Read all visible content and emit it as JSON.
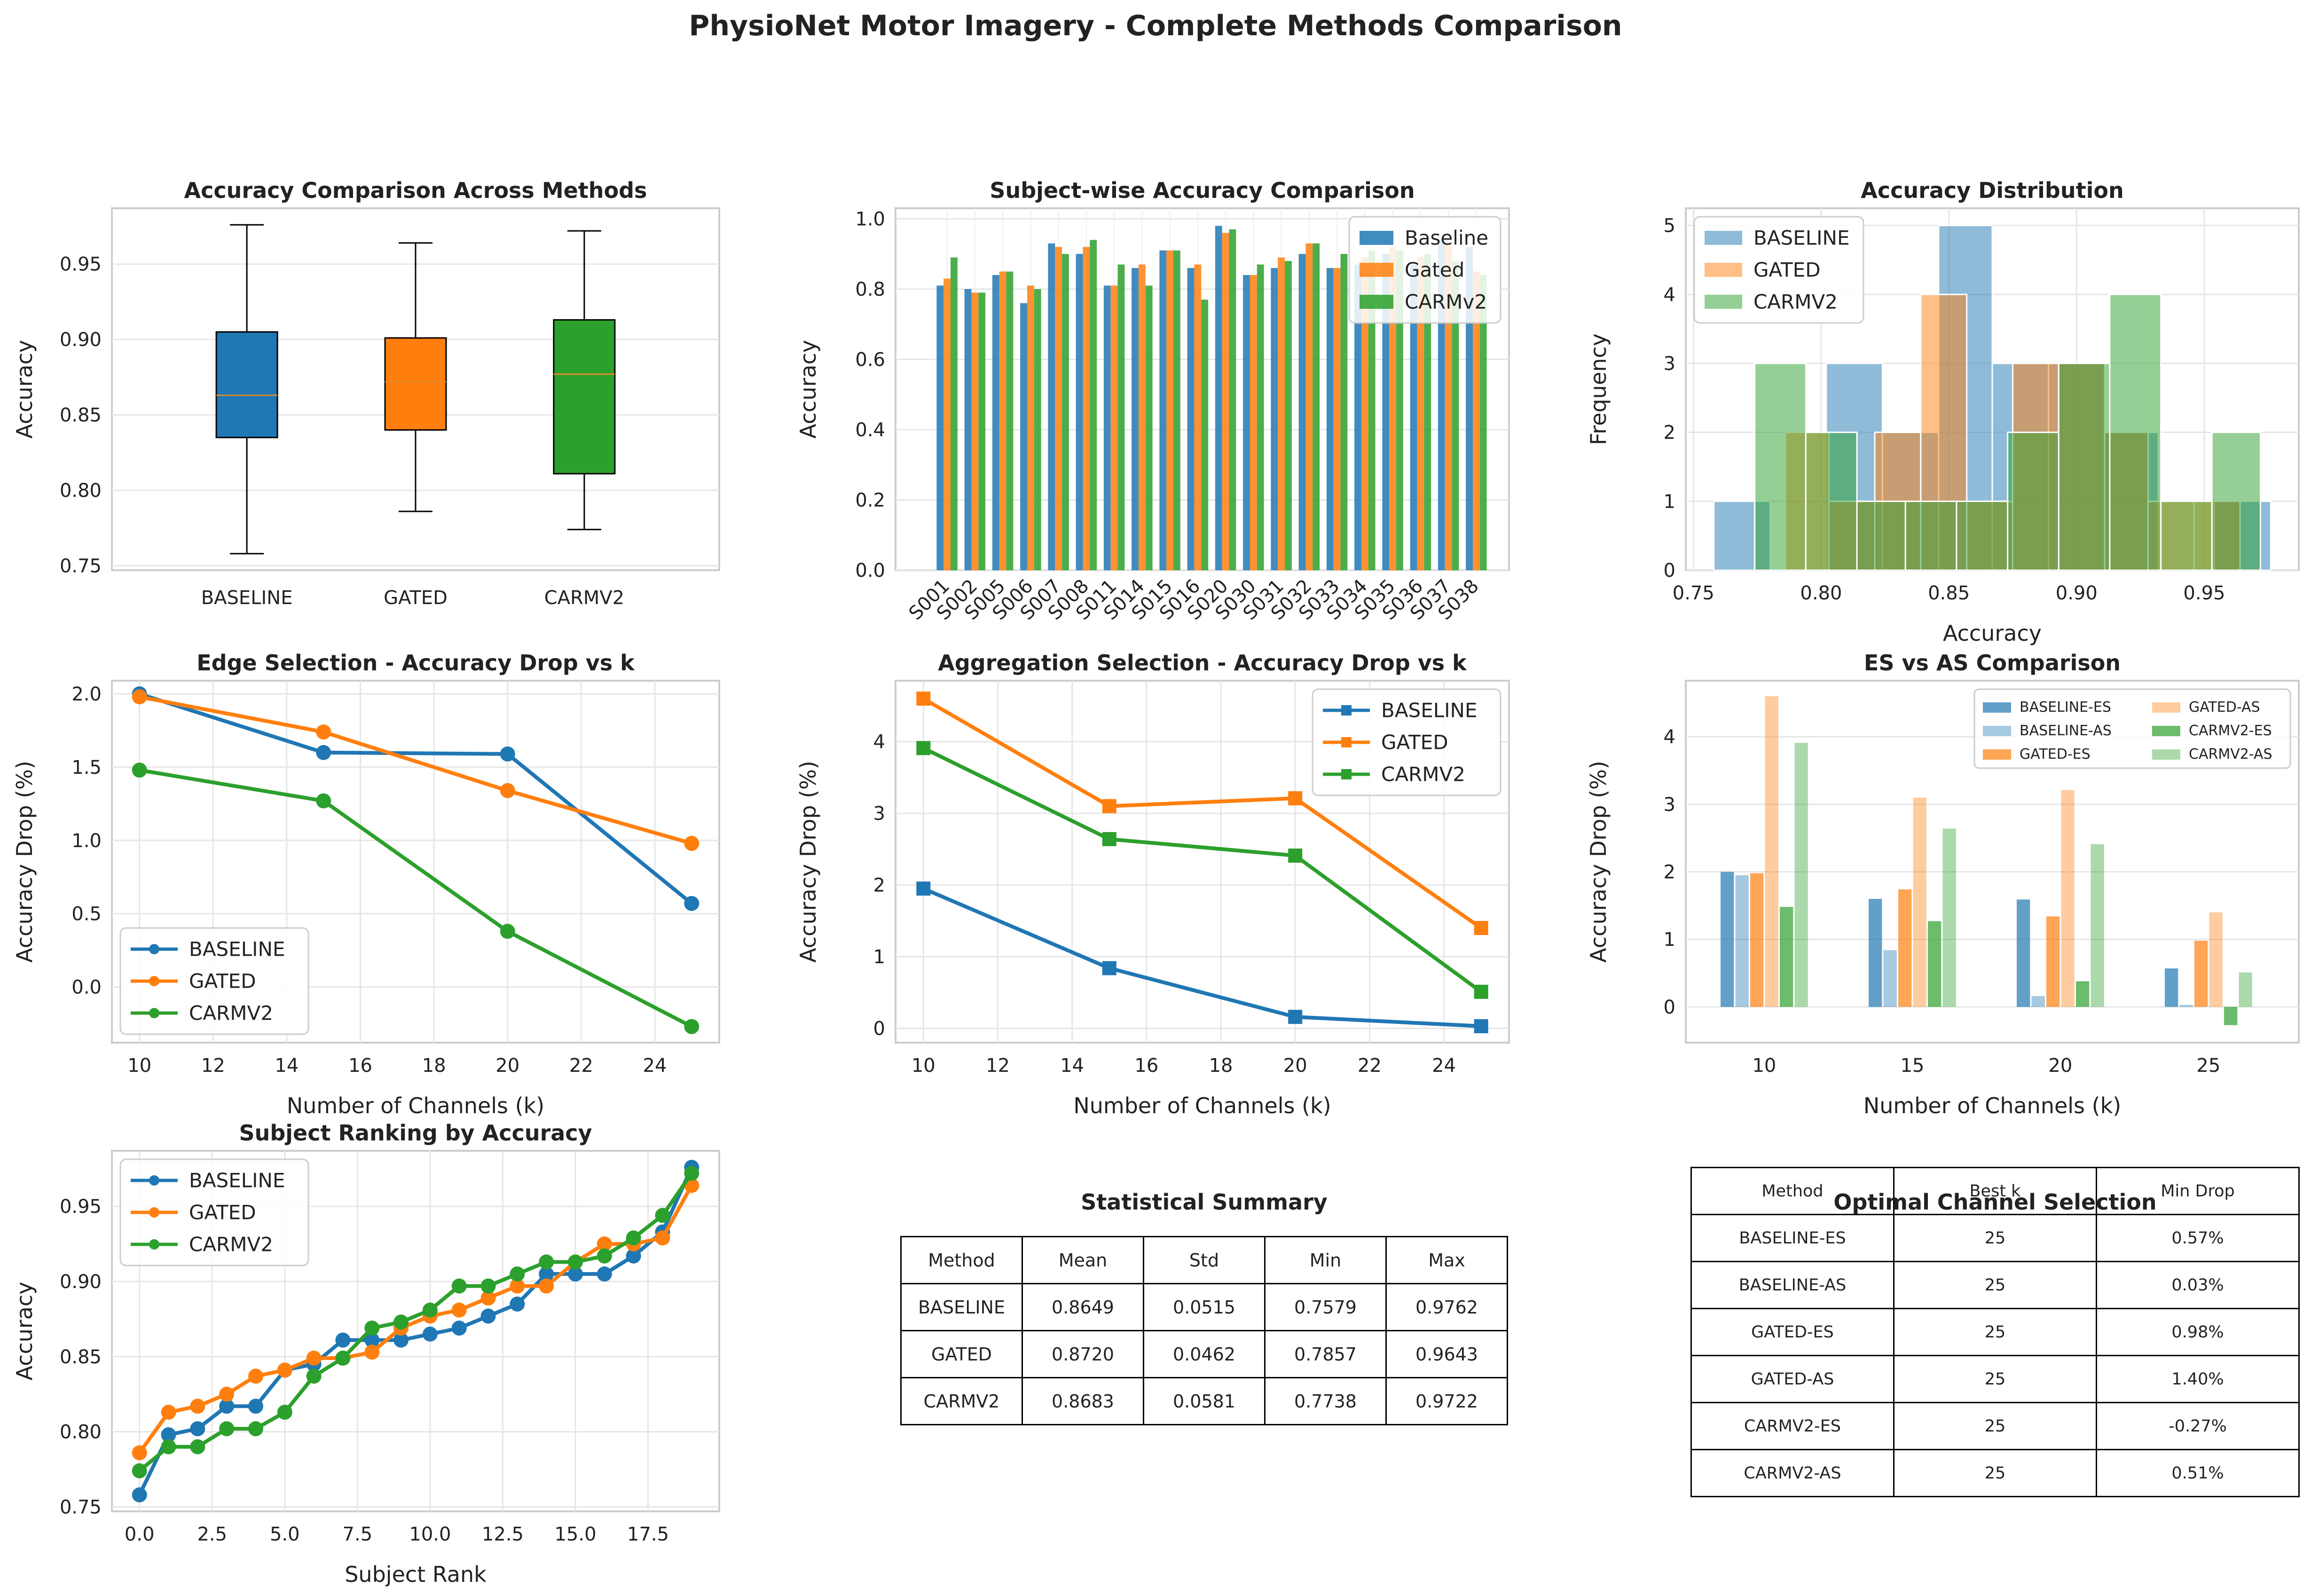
{
  "title": "PhysioNet Motor Imagery - Complete Methods Comparison",
  "colors": {
    "baseline": "#1f77b4",
    "gated": "#ff7f0e",
    "carmv2": "#2ca02c"
  },
  "chart_data": [
    {
      "id": "acc-box",
      "type": "box",
      "title": "Accuracy Comparison Across Methods",
      "xlabel": "",
      "ylabel": "Accuracy",
      "categories": [
        "BASELINE",
        "GATED",
        "CARMV2"
      ],
      "boxes": [
        {
          "whisker_low": 0.758,
          "q1": 0.835,
          "median": 0.863,
          "q3": 0.905,
          "whisker_high": 0.976
        },
        {
          "whisker_low": 0.786,
          "q1": 0.84,
          "median": 0.872,
          "q3": 0.901,
          "whisker_high": 0.964
        },
        {
          "whisker_low": 0.774,
          "q1": 0.811,
          "median": 0.877,
          "q3": 0.913,
          "whisker_high": 0.972
        }
      ],
      "ylim": [
        0.747,
        0.987
      ],
      "yticks": [
        "0.75",
        "0.80",
        "0.85",
        "0.90",
        "0.95"
      ],
      "grid": true
    },
    {
      "id": "subject-bars",
      "type": "bar",
      "title": "Subject-wise Accuracy Comparison",
      "xlabel": "",
      "ylabel": "Accuracy",
      "categories": [
        "S001",
        "S002",
        "S005",
        "S006",
        "S007",
        "S008",
        "S011",
        "S014",
        "S015",
        "S016",
        "S020",
        "S030",
        "S031",
        "S032",
        "S033",
        "S034",
        "S035",
        "S036",
        "S037",
        "S038"
      ],
      "series": [
        {
          "name": "Baseline",
          "values": [
            0.81,
            0.8,
            0.84,
            0.76,
            0.93,
            0.9,
            0.81,
            0.86,
            0.91,
            0.86,
            0.98,
            0.84,
            0.86,
            0.9,
            0.86,
            0.87,
            0.9,
            0.87,
            0.94,
            0.92
          ]
        },
        {
          "name": "Gated",
          "values": [
            0.83,
            0.79,
            0.85,
            0.81,
            0.92,
            0.92,
            0.81,
            0.87,
            0.91,
            0.87,
            0.96,
            0.84,
            0.89,
            0.93,
            0.86,
            0.89,
            0.92,
            0.89,
            0.93,
            0.85
          ]
        },
        {
          "name": "CARMv2",
          "values": [
            0.89,
            0.79,
            0.85,
            0.8,
            0.9,
            0.94,
            0.87,
            0.81,
            0.91,
            0.77,
            0.97,
            0.87,
            0.88,
            0.93,
            0.9,
            0.91,
            0.91,
            0.9,
            0.88,
            0.84
          ]
        }
      ],
      "ylim": [
        0,
        1.03
      ],
      "yticks": [
        "0.0",
        "0.2",
        "0.4",
        "0.6",
        "0.8",
        "1.0"
      ],
      "legend": "top-right",
      "grid": true
    },
    {
      "id": "acc-hist",
      "type": "histogram",
      "title": "Accuracy Distribution",
      "xlabel": "Accuracy",
      "ylabel": "Frequency",
      "series": [
        {
          "name": "BASELINE",
          "bins": [
            [
              0.758,
              0.78,
              1
            ],
            [
              0.78,
              0.802,
              0
            ],
            [
              0.802,
              0.824,
              3
            ],
            [
              0.824,
              0.846,
              2
            ],
            [
              0.846,
              0.867,
              5
            ],
            [
              0.867,
              0.889,
              3
            ],
            [
              0.889,
              0.911,
              3
            ],
            [
              0.911,
              0.932,
              2
            ],
            [
              0.932,
              0.954,
              0
            ],
            [
              0.954,
              0.976,
              1
            ]
          ]
        },
        {
          "name": "GATED",
          "bins": [
            [
              0.786,
              0.803,
              2
            ],
            [
              0.803,
              0.821,
              1
            ],
            [
              0.821,
              0.839,
              2
            ],
            [
              0.839,
              0.857,
              4
            ],
            [
              0.857,
              0.875,
              1
            ],
            [
              0.875,
              0.893,
              3
            ],
            [
              0.893,
              0.911,
              3
            ],
            [
              0.911,
              0.928,
              2
            ],
            [
              0.928,
              0.946,
              1
            ],
            [
              0.946,
              0.964,
              1
            ]
          ]
        },
        {
          "name": "CARMV2",
          "bins": [
            [
              0.774,
              0.794,
              3
            ],
            [
              0.794,
              0.814,
              2
            ],
            [
              0.814,
              0.833,
              1
            ],
            [
              0.833,
              0.853,
              1
            ],
            [
              0.853,
              0.873,
              1
            ],
            [
              0.873,
              0.893,
              2
            ],
            [
              0.893,
              0.913,
              3
            ],
            [
              0.913,
              0.933,
              4
            ],
            [
              0.933,
              0.953,
              1
            ],
            [
              0.953,
              0.972,
              2
            ]
          ]
        }
      ],
      "xlim": [
        0.747,
        0.987
      ],
      "ylim": [
        0,
        5.25
      ],
      "xticks": [
        "0.75",
        "0.80",
        "0.85",
        "0.90",
        "0.95"
      ],
      "yticks": [
        "0",
        "1",
        "2",
        "3",
        "4",
        "5"
      ],
      "legend": "top-left",
      "grid": true
    },
    {
      "id": "es-drop",
      "type": "line",
      "title": "Edge Selection - Accuracy Drop vs k",
      "xlabel": "Number of Channels (k)",
      "ylabel": "Accuracy Drop (%)",
      "x": [
        10,
        15,
        20,
        25
      ],
      "series": [
        {
          "name": "BASELINE",
          "values": [
            2.0,
            1.6,
            1.59,
            0.57
          ]
        },
        {
          "name": "GATED",
          "values": [
            1.98,
            1.74,
            1.34,
            0.98
          ]
        },
        {
          "name": "CARMV2",
          "values": [
            1.48,
            1.27,
            0.38,
            -0.27
          ]
        }
      ],
      "marker": "circle",
      "xlim": [
        9.25,
        25.75
      ],
      "ylim": [
        -0.38,
        2.09
      ],
      "xticks": [
        "10",
        "12",
        "14",
        "16",
        "18",
        "20",
        "22",
        "24"
      ],
      "yticks": [
        "0.0",
        "0.5",
        "1.0",
        "1.5",
        "2.0"
      ],
      "legend": "bottom-left",
      "grid": true
    },
    {
      "id": "as-drop",
      "type": "line",
      "title": "Aggregation Selection - Accuracy Drop vs k",
      "xlabel": "Number of Channels (k)",
      "ylabel": "Accuracy Drop (%)",
      "x": [
        10,
        15,
        20,
        25
      ],
      "series": [
        {
          "name": "BASELINE",
          "values": [
            1.95,
            0.84,
            0.16,
            0.03
          ]
        },
        {
          "name": "GATED",
          "values": [
            4.6,
            3.1,
            3.21,
            1.4
          ]
        },
        {
          "name": "CARMV2",
          "values": [
            3.91,
            2.64,
            2.41,
            0.51
          ]
        }
      ],
      "marker": "square",
      "xlim": [
        9.25,
        25.75
      ],
      "ylim": [
        -0.2,
        4.85
      ],
      "xticks": [
        "10",
        "12",
        "14",
        "16",
        "18",
        "20",
        "22",
        "24"
      ],
      "yticks": [
        "0",
        "1",
        "2",
        "3",
        "4"
      ],
      "legend": "top-right",
      "grid": true
    },
    {
      "id": "es-as-bars",
      "type": "bar",
      "title": "ES vs AS Comparison",
      "xlabel": "Number of Channels (k)",
      "ylabel": "Accuracy Drop (%)",
      "x": [
        10,
        15,
        20,
        25
      ],
      "series": [
        {
          "name": "BASELINE-ES",
          "values": [
            2.0,
            1.6,
            1.59,
            0.57
          ]
        },
        {
          "name": "BASELINE-AS",
          "values": [
            1.95,
            0.84,
            0.16,
            0.03
          ]
        },
        {
          "name": "GATED-ES",
          "values": [
            1.98,
            1.74,
            1.34,
            0.98
          ]
        },
        {
          "name": "GATED-AS",
          "values": [
            4.6,
            3.1,
            3.21,
            1.4
          ]
        },
        {
          "name": "CARMV2-ES",
          "values": [
            1.48,
            1.27,
            0.38,
            -0.27
          ]
        },
        {
          "name": "CARMV2-AS",
          "values": [
            3.91,
            2.64,
            2.41,
            0.51
          ]
        }
      ],
      "xlim": [
        7.35,
        28.05
      ],
      "ylim": [
        -0.53,
        4.83
      ],
      "xticks": [
        "10",
        "15",
        "20",
        "25"
      ],
      "yticks": [
        "0",
        "1",
        "2",
        "3",
        "4"
      ],
      "legend": "top-right",
      "grid": true
    },
    {
      "id": "ranking",
      "type": "line",
      "title": "Subject Ranking by Accuracy",
      "xlabel": "Subject Rank",
      "ylabel": "Accuracy",
      "x": [
        0,
        1,
        2,
        3,
        4,
        5,
        6,
        7,
        8,
        9,
        10,
        11,
        12,
        13,
        14,
        15,
        16,
        17,
        18,
        19
      ],
      "series": [
        {
          "name": "BASELINE",
          "values": [
            0.758,
            0.798,
            0.802,
            0.817,
            0.817,
            0.841,
            0.845,
            0.861,
            0.861,
            0.861,
            0.865,
            0.869,
            0.877,
            0.885,
            0.905,
            0.905,
            0.905,
            0.917,
            0.933,
            0.976
          ]
        },
        {
          "name": "GATED",
          "values": [
            0.786,
            0.813,
            0.817,
            0.825,
            0.837,
            0.841,
            0.849,
            0.849,
            0.853,
            0.869,
            0.877,
            0.881,
            0.889,
            0.897,
            0.897,
            0.913,
            0.925,
            0.925,
            0.929,
            0.964
          ]
        },
        {
          "name": "CARMV2",
          "values": [
            0.774,
            0.79,
            0.79,
            0.802,
            0.802,
            0.813,
            0.837,
            0.849,
            0.869,
            0.873,
            0.881,
            0.897,
            0.897,
            0.905,
            0.913,
            0.913,
            0.917,
            0.929,
            0.944,
            0.972
          ]
        }
      ],
      "marker": "circle",
      "xlim": [
        -0.95,
        19.95
      ],
      "ylim": [
        0.747,
        0.987
      ],
      "xticks": [
        "0.0",
        "2.5",
        "5.0",
        "7.5",
        "10.0",
        "12.5",
        "15.0",
        "17.5"
      ],
      "yticks": [
        "0.75",
        "0.80",
        "0.85",
        "0.90",
        "0.95"
      ],
      "legend": "top-left",
      "grid": true
    },
    {
      "id": "summary-table",
      "type": "table",
      "title": "Statistical Summary",
      "columns": [
        "Method",
        "Mean",
        "Std",
        "Min",
        "Max"
      ],
      "rows": [
        [
          "BASELINE",
          "0.8649",
          "0.0515",
          "0.7579",
          "0.9762"
        ],
        [
          "GATED",
          "0.8720",
          "0.0462",
          "0.7857",
          "0.9643"
        ],
        [
          "CARMV2",
          "0.8683",
          "0.0581",
          "0.7738",
          "0.9722"
        ]
      ]
    },
    {
      "id": "optimal-table",
      "type": "table",
      "title": "Optimal Channel Selection",
      "columns": [
        "Method",
        "Best k",
        "Min Drop"
      ],
      "rows": [
        [
          "BASELINE-ES",
          "25",
          "0.57%"
        ],
        [
          "BASELINE-AS",
          "25",
          "0.03%"
        ],
        [
          "GATED-ES",
          "25",
          "0.98%"
        ],
        [
          "GATED-AS",
          "25",
          "1.40%"
        ],
        [
          "CARMV2-ES",
          "25",
          "-0.27%"
        ],
        [
          "CARMV2-AS",
          "25",
          "0.51%"
        ]
      ]
    }
  ]
}
